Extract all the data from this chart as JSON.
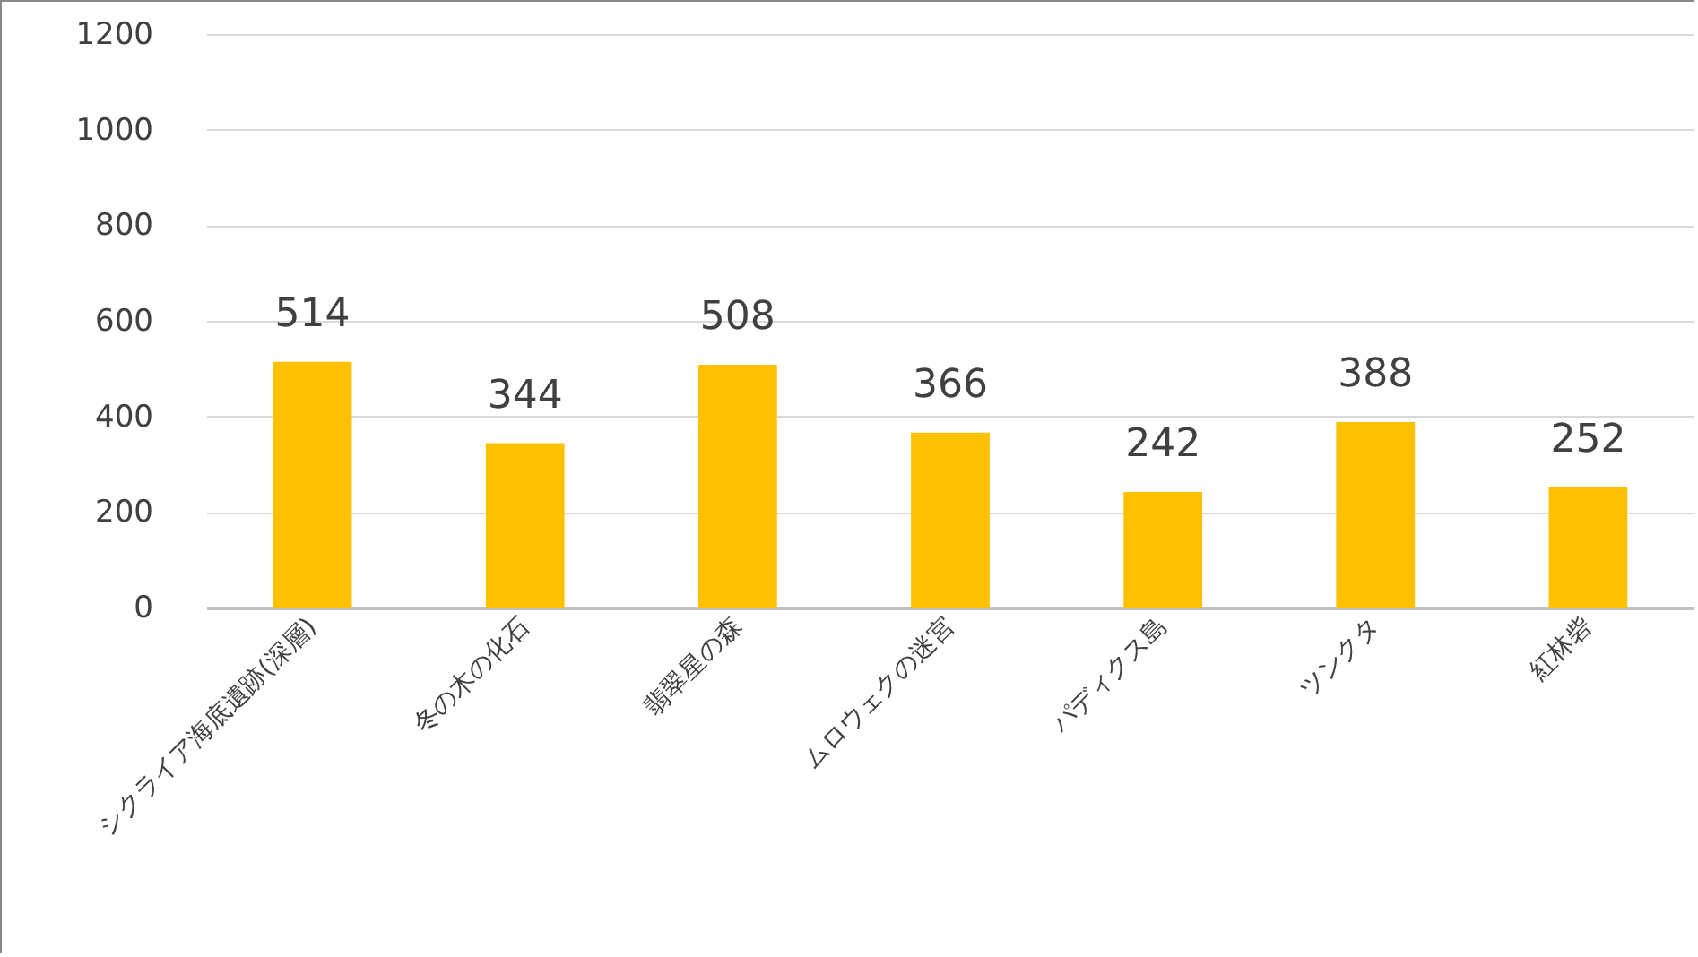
{
  "chart_data": {
    "type": "bar",
    "categories": [
      "シクライア海底遺跡(深層)",
      "冬の木の化石",
      "翡翠星の森",
      "ムロウェクの迷宮",
      "パディクス島",
      "ツンクタ",
      "紅林砦"
    ],
    "values": [
      514,
      344,
      508,
      366,
      242,
      388,
      252
    ],
    "color": "#ffc000",
    "ylim": [
      0,
      1200
    ],
    "yticks": [
      0,
      200,
      400,
      600,
      800,
      1000,
      1200
    ],
    "grid": "y",
    "data_labels": true
  }
}
